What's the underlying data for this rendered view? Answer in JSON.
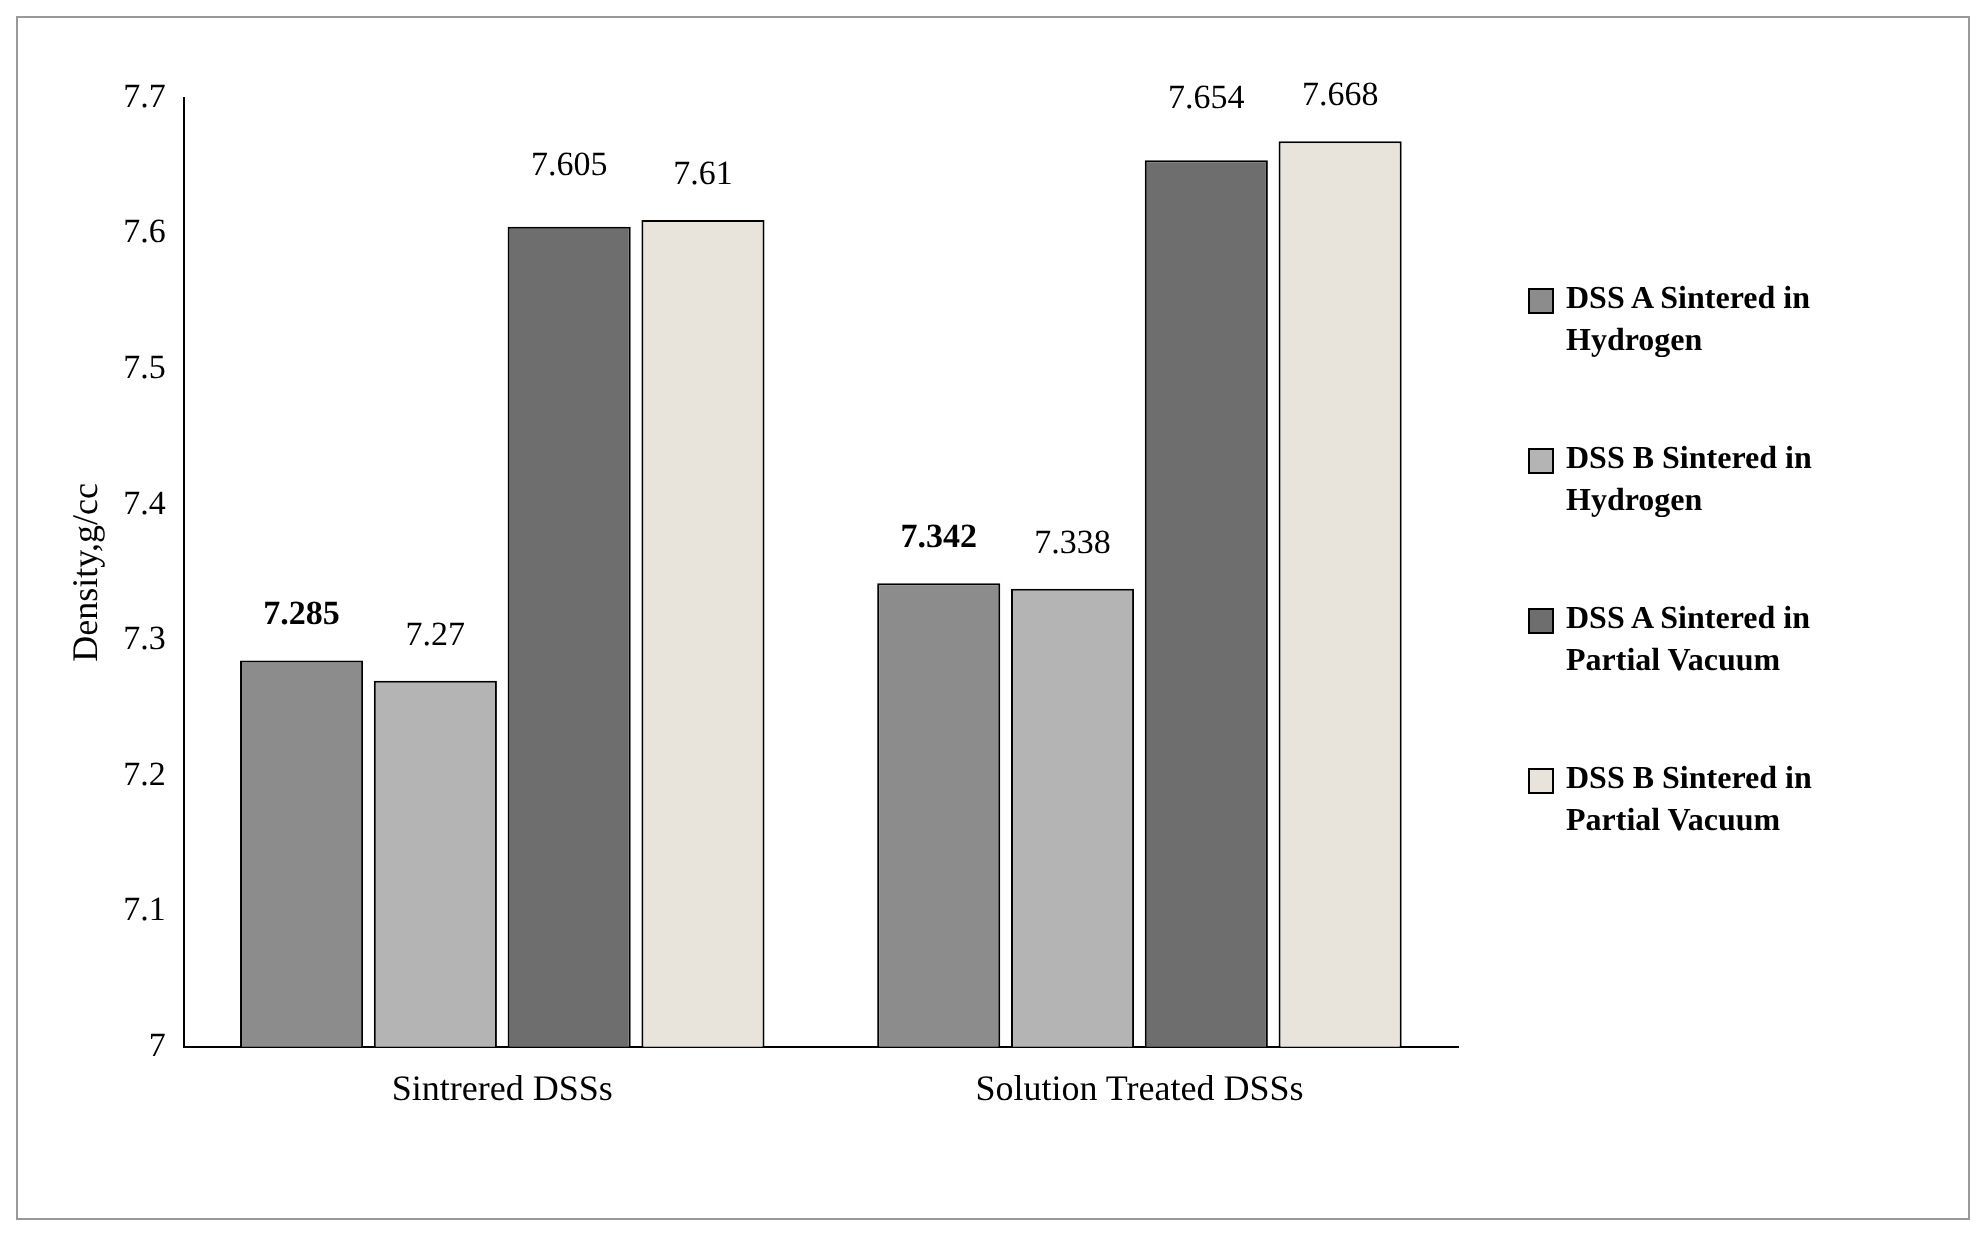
{
  "chart_data": {
    "type": "bar",
    "ylabel": "Density,g/cc",
    "categories": [
      "Sintrered DSSs",
      "Solution Treated DSSs"
    ],
    "series": [
      {
        "name": "DSS A Sintered in Hydrogen",
        "color": "#8c8c8c",
        "values": [
          7.285,
          7.342
        ]
      },
      {
        "name": "DSS B Sintered in Hydrogen",
        "color": "#b4b4b4",
        "values": [
          7.27,
          7.338
        ]
      },
      {
        "name": "DSS A Sintered in Partial Vacuum",
        "color": "#6e6e6e",
        "values": [
          7.605,
          7.654
        ]
      },
      {
        "name": "DSS B Sintered in Partial Vacuum",
        "color": "#e8e4dc",
        "values": [
          7.61,
          7.668
        ]
      }
    ],
    "ylim": [
      7,
      7.7
    ],
    "yticks": [
      7,
      7.1,
      7.2,
      7.3,
      7.4,
      7.5,
      7.6,
      7.7
    ],
    "grid": false,
    "legend": "right",
    "data_labels": true
  }
}
